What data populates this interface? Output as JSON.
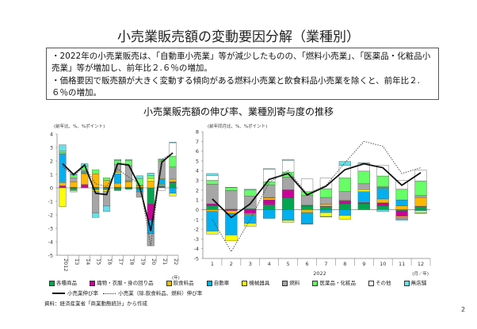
{
  "title": "小売業販売額の変動要因分解（業種別）",
  "summary": [
    "・2022年の小売業販売は、「自動車小売業」等が減少したものの、「燃料小売業」、「医薬品・化粧品小売業」等が増加し、前年比２.６％の増加。",
    "・価格要因で販売額が大きく変動する傾向がある燃料小売業と飲食料品小売業を除くと、前年比２.６％の増加。"
  ],
  "chart_title": "小売業販売額の伸び率、業種別寄与度の推移",
  "categories_meta": [
    {
      "name": "各種商品",
      "color": "#00A650"
    },
    {
      "name": "織物・衣服・身の回り品",
      "color": "#CC0099"
    },
    {
      "name": "飲食料品",
      "color": "#FFB800"
    },
    {
      "name": "自動車",
      "color": "#00B0F0"
    },
    {
      "name": "機械器具",
      "color": "#FFFF00"
    },
    {
      "name": "燃料",
      "color": "#A6A6A6"
    },
    {
      "name": "医薬品・化粧品",
      "color": "#66FF66"
    },
    {
      "name": "その他",
      "color": "#FFFFFF"
    },
    {
      "name": "無店舗",
      "color": "#66E0E8"
    }
  ],
  "line_legend": {
    "total": "小売業伸び率",
    "excl": "小売業（除.飲食料品、燃料）伸び率"
  },
  "source": "資料：経済産業省「商業動態統計」から作成",
  "page_number": "2",
  "chart_data": [
    {
      "type": "bar",
      "stacked": true,
      "ylabel": "(前年比、%、%ポイント)",
      "xlabel": "(年)",
      "ylim": [
        -5,
        4
      ],
      "yticks": [
        4,
        3,
        2,
        1,
        0,
        -1,
        -2,
        -3,
        -4,
        -5
      ],
      "categories": [
        "2012",
        "13",
        "14",
        "15",
        "16",
        "17",
        "18",
        "19",
        "20",
        "21",
        "22"
      ],
      "series": [
        {
          "name": "各種商品",
          "values": [
            0.05,
            -0.1,
            0.05,
            -0.05,
            -0.05,
            -0.2,
            -0.1,
            -0.1,
            -1.2,
            0.1,
            0.4
          ]
        },
        {
          "name": "織物・衣服・身の回り品",
          "values": [
            0.1,
            0.05,
            0.2,
            0.05,
            0.05,
            0.05,
            0.05,
            0.05,
            -1.2,
            0.05,
            0.05
          ]
        },
        {
          "name": "飲食料品",
          "values": [
            0.25,
            0.4,
            0.8,
            1.0,
            0.5,
            0.3,
            0.4,
            0.1,
            0.5,
            0.1,
            0.2
          ]
        },
        {
          "name": "自動車",
          "values": [
            2.1,
            -0.1,
            0.1,
            -0.1,
            -0.1,
            0.7,
            0.05,
            -0.2,
            -1.0,
            0.4,
            -0.4
          ]
        },
        {
          "name": "機械器具",
          "values": [
            -1.4,
            -0.1,
            0.05,
            -0.1,
            -0.1,
            0.1,
            0.05,
            0.05,
            0.2,
            0.05,
            -0.2
          ]
        },
        {
          "name": "燃料",
          "values": [
            0.1,
            0.3,
            0.1,
            -1.6,
            -1.1,
            0.6,
            1.1,
            -0.4,
            -0.9,
            1.3,
            0.9
          ]
        },
        {
          "name": "医薬品・化粧品",
          "values": [
            0.15,
            0.2,
            0.3,
            0.3,
            0.2,
            0.3,
            0.4,
            0.5,
            0.2,
            0.1,
            0.8
          ]
        },
        {
          "name": "その他",
          "values": [
            0,
            0,
            0,
            0,
            0,
            0,
            0,
            0,
            0,
            -0.2,
            1.0
          ]
        },
        {
          "name": "無店舗",
          "values": [
            0.45,
            0.1,
            0.2,
            -0.35,
            -0.4,
            0.05,
            0.05,
            0.2,
            0.2,
            0.05,
            0.05
          ]
        }
      ],
      "lines": [
        {
          "name": "小売業伸び率",
          "values": [
            1.8,
            1.0,
            1.7,
            -0.4,
            -0.5,
            1.8,
            1.7,
            0.1,
            -3.2,
            1.9,
            2.6
          ]
        },
        {
          "name": "小売業（除.飲食料品、燃料）伸び率",
          "values": [
            1.6,
            0.9,
            1.6,
            0.3,
            0.1,
            1.4,
            0.8,
            0.3,
            -4.3,
            2.1,
            2.6
          ]
        }
      ]
    },
    {
      "type": "bar",
      "stacked": true,
      "ylabel": "(前年同月比、%、%ポイント)",
      "xlabel": "2022",
      "xunit": "(月／年)",
      "ylim": [
        -5,
        8
      ],
      "yticks": [
        8,
        7,
        6,
        5,
        4,
        3,
        2,
        1,
        0,
        -1,
        -2,
        -3,
        -4,
        -5
      ],
      "categories": [
        "1",
        "2",
        "3",
        "4",
        "5",
        "6",
        "7",
        "8",
        "9",
        "10",
        "11",
        "12"
      ],
      "series": [
        {
          "name": "各種商品",
          "values": [
            0.4,
            0.05,
            0.1,
            0.5,
            1.2,
            0.4,
            0.3,
            0.6,
            0.6,
            0.4,
            -0.1,
            0.3
          ]
        },
        {
          "name": "織物・衣服・身の回り品",
          "values": [
            0.2,
            -0.1,
            -0.4,
            0.5,
            0.8,
            0.05,
            0.05,
            0.3,
            0.1,
            0.3,
            -0.6,
            0.05
          ]
        },
        {
          "name": "飲食料品",
          "values": [
            -0.2,
            -0.3,
            -0.1,
            0.2,
            0.05,
            -0.3,
            0.2,
            0.05,
            0.05,
            0.4,
            0.4,
            0.9
          ]
        },
        {
          "name": "自動車",
          "values": [
            -2.0,
            -2.2,
            -0.9,
            -0.9,
            -1.1,
            -1.1,
            -0.3,
            -0.6,
            1.1,
            1.1,
            0.6,
            -0.1
          ]
        },
        {
          "name": "機械器具",
          "values": [
            -0.3,
            -0.6,
            -0.3,
            0.05,
            -0.2,
            -0.05,
            -0.4,
            -0.4,
            0.2,
            0.05,
            -0.1,
            -0.2
          ]
        },
        {
          "name": "燃料",
          "values": [
            2.0,
            1.9,
            1.3,
            1.3,
            1.3,
            1.0,
            0.7,
            0.9,
            0.6,
            0.1,
            -0.2,
            0.2
          ]
        },
        {
          "name": "医薬品・化粧品",
          "values": [
            0.4,
            0.3,
            0.6,
            0.3,
            0.5,
            0.4,
            0.9,
            1.4,
            1.3,
            1.1,
            1.1,
            1.5
          ]
        },
        {
          "name": "その他",
          "values": [
            0.5,
            0,
            0,
            1.3,
            1.2,
            1.3,
            1.1,
            1.3,
            0.8,
            1.1,
            0.9,
            1.1
          ]
        },
        {
          "name": "無店舗",
          "values": [
            0.2,
            0.05,
            0.1,
            0.05,
            0.1,
            -0.05,
            -0.05,
            0.4,
            0.05,
            -0.2,
            -0.1,
            -0.1
          ]
        }
      ],
      "lines": [
        {
          "name": "小売業伸び率",
          "values": [
            1.1,
            -0.8,
            0.6,
            3.1,
            3.7,
            1.5,
            2.4,
            4.1,
            4.7,
            4.3,
            2.5,
            3.8
          ]
        },
        {
          "name": "小売業（除.飲食料品、燃料）伸び率",
          "values": [
            -1.0,
            -4.3,
            -1.0,
            2.8,
            4.0,
            1.6,
            2.5,
            4.8,
            7.0,
            6.5,
            3.7,
            4.3
          ]
        }
      ]
    }
  ]
}
